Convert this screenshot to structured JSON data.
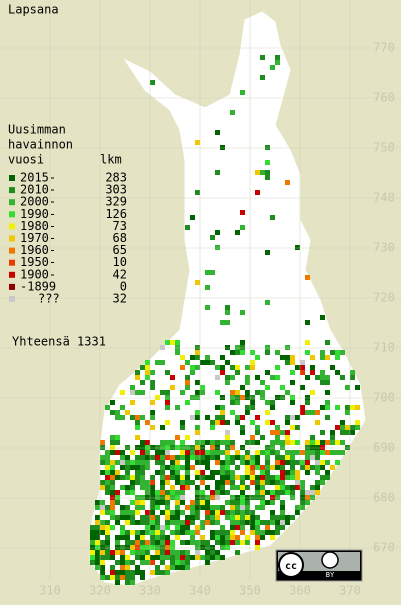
{
  "title": "Lapsana",
  "legend": {
    "heading": [
      "Uusimman",
      "havainnon"
    ],
    "col_year": "vuosi",
    "col_count": "lkm",
    "rows": [
      {
        "label": "2015-",
        "count": 283,
        "color": "#006400"
      },
      {
        "label": "2010-",
        "count": 303,
        "color": "#1e8c1e"
      },
      {
        "label": "2000-",
        "count": 329,
        "color": "#32b432"
      },
      {
        "label": "1990-",
        "count": 126,
        "color": "#32dc32"
      },
      {
        "label": "1980-",
        "count": 73,
        "color": "#f0f000"
      },
      {
        "label": "1970-",
        "count": 68,
        "color": "#f0c800"
      },
      {
        "label": "1960-",
        "count": 65,
        "color": "#f07800"
      },
      {
        "label": "1950-",
        "count": 10,
        "color": "#e63c00"
      },
      {
        "label": "1900-",
        "count": 42,
        "color": "#c80000"
      },
      {
        "label": "-1899",
        "count": 0,
        "color": "#8c0000"
      },
      {
        "label": "???",
        "count": 32,
        "color": "#c8c8c8"
      }
    ],
    "total": "Yhteensä 1331"
  },
  "x_labels": [
    310,
    320,
    330,
    340,
    350,
    360,
    370
  ],
  "y_labels": [
    770,
    760,
    750,
    740,
    730,
    720,
    710,
    700,
    690,
    680,
    670
  ],
  "license": "BY"
}
